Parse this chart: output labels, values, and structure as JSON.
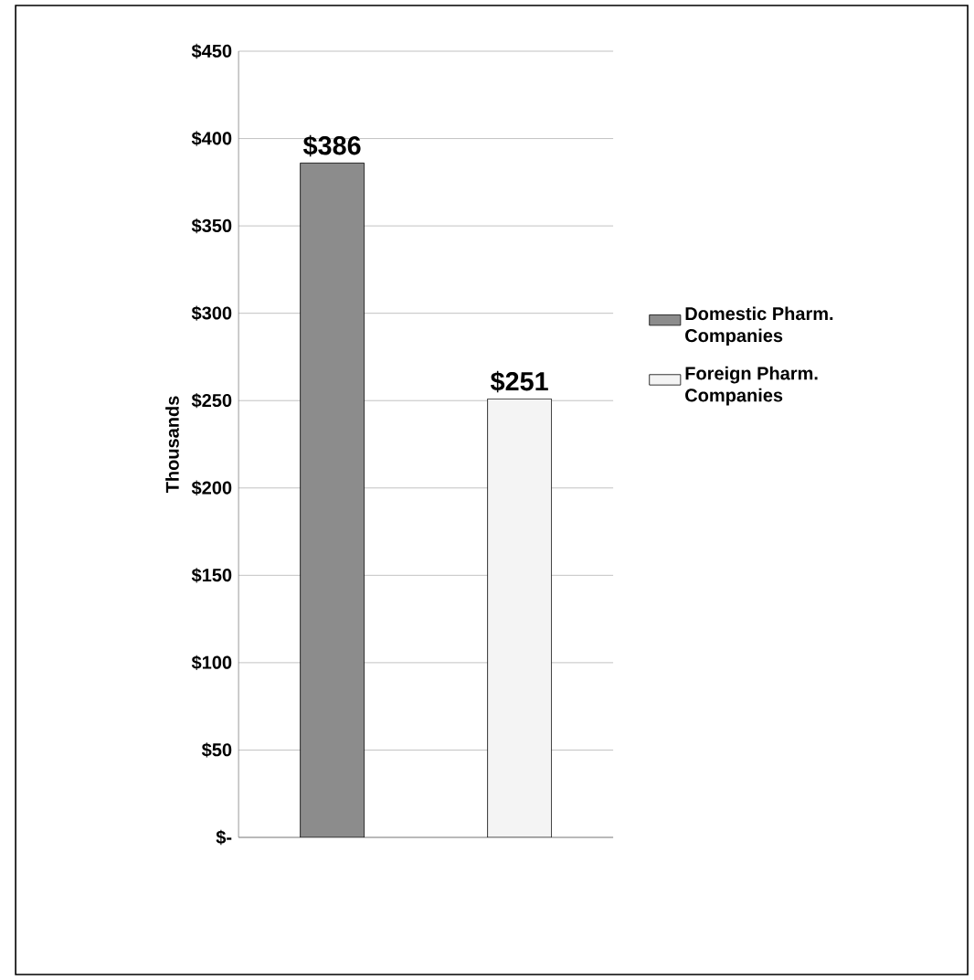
{
  "chart_data": {
    "type": "bar",
    "ylabel": "Thousands",
    "categories": [
      null
    ],
    "series": [
      {
        "name": "Domestic Pharm. Companies",
        "color": "#8c8c8c",
        "values": [
          386
        ],
        "value_labels": [
          "$386"
        ]
      },
      {
        "name": "Foreign Pharm. Companies",
        "color": "#f4f4f4",
        "values": [
          251
        ],
        "value_labels": [
          "$251"
        ]
      }
    ],
    "ylim": [
      0,
      450
    ],
    "yticks": [
      {
        "value": 0,
        "label": "$-"
      },
      {
        "value": 50,
        "label": "$50"
      },
      {
        "value": 100,
        "label": "$100"
      },
      {
        "value": 150,
        "label": "$150"
      },
      {
        "value": 200,
        "label": "$200"
      },
      {
        "value": 250,
        "label": "$250"
      },
      {
        "value": 300,
        "label": "$300"
      },
      {
        "value": 350,
        "label": "$350"
      },
      {
        "value": 400,
        "label": "$400"
      },
      {
        "value": 450,
        "label": "$450"
      }
    ],
    "grid": "y",
    "legend": "right"
  }
}
